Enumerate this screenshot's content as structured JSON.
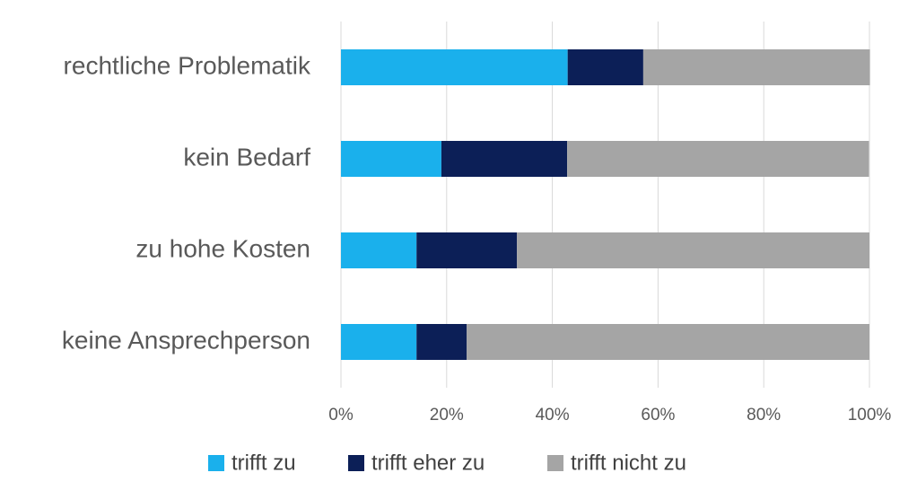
{
  "chart_data": {
    "type": "stacked-barh",
    "categories": [
      "rechtliche Problematik",
      "kein Bedarf",
      "zu hohe Kosten",
      "keine Ansprechperson"
    ],
    "series": [
      {
        "name": "trifft zu",
        "color": "#1ab0ec",
        "values": [
          42.9,
          19.0,
          14.3,
          14.3
        ]
      },
      {
        "name": "trifft eher zu",
        "color": "#0c1f57",
        "values": [
          14.3,
          23.8,
          19.0,
          9.5
        ]
      },
      {
        "name": "trifft nicht zu",
        "color": "#a5a5a5",
        "values": [
          42.9,
          57.1,
          66.7,
          76.2
        ]
      }
    ],
    "xlim": [
      0,
      100
    ],
    "xticks": [
      {
        "value": 0,
        "label": "0%"
      },
      {
        "value": 20,
        "label": "20%"
      },
      {
        "value": 40,
        "label": "40%"
      },
      {
        "value": 60,
        "label": "60%"
      },
      {
        "value": 80,
        "label": "80%"
      },
      {
        "value": 100,
        "label": "100%"
      }
    ],
    "grid": true,
    "legend": "bottom"
  }
}
